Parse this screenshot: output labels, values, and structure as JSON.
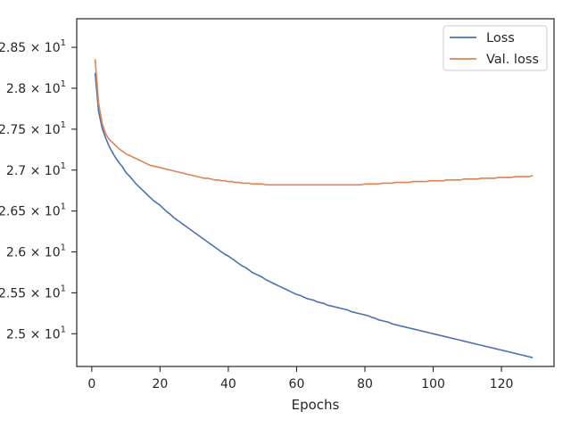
{
  "chart_data": {
    "type": "line",
    "title": "",
    "xlabel": "Epochs",
    "ylabel": "",
    "xlim": [
      -4.4,
      135.4
    ],
    "ylim": [
      24.6,
      28.85
    ],
    "x_ticks": [
      0,
      20,
      40,
      60,
      80,
      100,
      120
    ],
    "y_ticks": [
      {
        "value": 28.5,
        "mantissa": "2.85",
        "base": "10",
        "exp": "1"
      },
      {
        "value": 28.0,
        "mantissa": "2.8",
        "base": "10",
        "exp": "1"
      },
      {
        "value": 27.5,
        "mantissa": "2.75",
        "base": "10",
        "exp": "1"
      },
      {
        "value": 27.0,
        "mantissa": "2.7",
        "base": "10",
        "exp": "1"
      },
      {
        "value": 26.5,
        "mantissa": "2.65",
        "base": "10",
        "exp": "1"
      },
      {
        "value": 26.0,
        "mantissa": "2.6",
        "base": "10",
        "exp": "1"
      },
      {
        "value": 25.5,
        "mantissa": "2.55",
        "base": "10",
        "exp": "1"
      },
      {
        "value": 25.0,
        "mantissa": "2.5",
        "base": "10",
        "exp": "1"
      }
    ],
    "grid": false,
    "legend": "top-right",
    "x_start": 1,
    "x_step": 1,
    "series": [
      {
        "name": "Loss",
        "color": "#4c72b0",
        "values": [
          28.18,
          27.72,
          27.52,
          27.4,
          27.3,
          27.22,
          27.15,
          27.09,
          27.04,
          26.97,
          26.93,
          26.88,
          26.83,
          26.79,
          26.75,
          26.71,
          26.67,
          26.63,
          26.6,
          26.57,
          26.53,
          26.49,
          26.46,
          26.42,
          26.39,
          26.36,
          26.33,
          26.3,
          26.27,
          26.24,
          26.21,
          26.18,
          26.15,
          26.12,
          26.09,
          26.06,
          26.03,
          26.0,
          25.97,
          25.95,
          25.92,
          25.89,
          25.86,
          25.83,
          25.81,
          25.78,
          25.75,
          25.73,
          25.71,
          25.69,
          25.66,
          25.64,
          25.62,
          25.6,
          25.58,
          25.56,
          25.54,
          25.52,
          25.5,
          25.48,
          25.47,
          25.45,
          25.43,
          25.42,
          25.41,
          25.39,
          25.38,
          25.37,
          25.35,
          25.34,
          25.33,
          25.32,
          25.31,
          25.3,
          25.29,
          25.27,
          25.26,
          25.25,
          25.24,
          25.23,
          25.22,
          25.2,
          25.19,
          25.17,
          25.16,
          25.15,
          25.14,
          25.12,
          25.11,
          25.1,
          25.09,
          25.08,
          25.07,
          25.06,
          25.05,
          25.04,
          25.03,
          25.02,
          25.01,
          25.0,
          24.99,
          24.98,
          24.97,
          24.96,
          24.95,
          24.94,
          24.93,
          24.92,
          24.91,
          24.9,
          24.89,
          24.88,
          24.87,
          24.86,
          24.85,
          24.84,
          24.83,
          24.82,
          24.81,
          24.8,
          24.79,
          24.78,
          24.77,
          24.76,
          24.75,
          24.74,
          24.73,
          24.72,
          24.71
        ]
      },
      {
        "name": "Val. loss",
        "color": "#dd8452",
        "values": [
          28.35,
          27.82,
          27.58,
          27.45,
          27.38,
          27.34,
          27.3,
          27.26,
          27.23,
          27.2,
          27.18,
          27.16,
          27.14,
          27.12,
          27.1,
          27.08,
          27.06,
          27.05,
          27.04,
          27.03,
          27.02,
          27.01,
          27.0,
          26.99,
          26.98,
          26.97,
          26.96,
          26.95,
          26.94,
          26.93,
          26.92,
          26.91,
          26.9,
          26.9,
          26.89,
          26.88,
          26.88,
          26.87,
          26.87,
          26.86,
          26.86,
          26.85,
          26.85,
          26.84,
          26.84,
          26.84,
          26.83,
          26.83,
          26.83,
          26.83,
          26.82,
          26.82,
          26.82,
          26.82,
          26.82,
          26.82,
          26.82,
          26.82,
          26.82,
          26.82,
          26.82,
          26.82,
          26.82,
          26.82,
          26.82,
          26.82,
          26.82,
          26.82,
          26.82,
          26.82,
          26.82,
          26.82,
          26.82,
          26.82,
          26.82,
          26.82,
          26.82,
          26.82,
          26.82,
          26.83,
          26.83,
          26.83,
          26.83,
          26.83,
          26.84,
          26.84,
          26.84,
          26.84,
          26.85,
          26.85,
          26.85,
          26.85,
          26.85,
          26.86,
          26.86,
          26.86,
          26.86,
          26.86,
          26.87,
          26.87,
          26.87,
          26.87,
          26.87,
          26.88,
          26.88,
          26.88,
          26.88,
          26.88,
          26.89,
          26.89,
          26.89,
          26.89,
          26.89,
          26.9,
          26.9,
          26.9,
          26.9,
          26.9,
          26.91,
          26.91,
          26.91,
          26.91,
          26.91,
          26.92,
          26.92,
          26.92,
          26.92,
          26.92,
          26.93
        ]
      }
    ]
  }
}
